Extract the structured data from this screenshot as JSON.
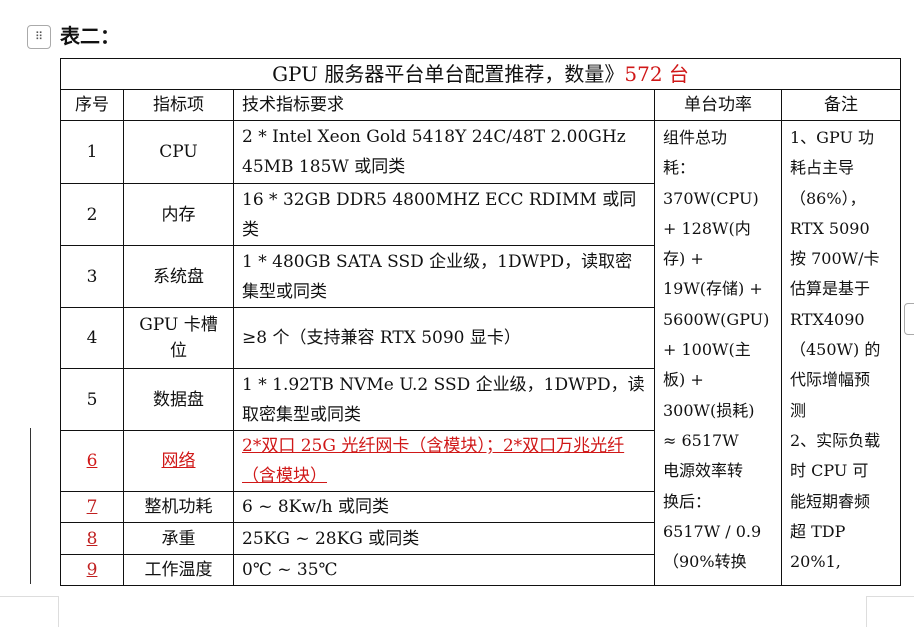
{
  "heading": "表二：",
  "table": {
    "title": "GPU 服务器平台单台配置推荐，数量》",
    "title_count": "572 台",
    "headers": [
      "序号",
      "指标项",
      "技术指标要求",
      "单台功率",
      "备注"
    ],
    "rows": [
      {
        "no": "1",
        "item": "CPU",
        "spec": "2 * Intel Xeon Gold 5418Y 24C/48T 2.00GHz 45MB 185W 或同类"
      },
      {
        "no": "2",
        "item": "内存",
        "spec": "16 * 32GB DDR5 4800MHZ ECC RDIMM 或同类"
      },
      {
        "no": "3",
        "item": "系统盘",
        "spec": "1 * 480GB SATA SSD  企业级，1DWPD，读取密集型或同类"
      },
      {
        "no": "4",
        "item": "GPU 卡槽位",
        "spec": "≥8 个（支持兼容 RTX 5090 显卡）"
      },
      {
        "no": "5",
        "item": "数据盘",
        "spec": "1 * 1.92TB NVMe U.2 SSD  企业级，1DWPD，读取密集型或同类"
      },
      {
        "no": "6",
        "item": "网络",
        "spec": "2*双口 25G 光纤网卡（含模块）；2*双口万兆光纤（含模块）"
      },
      {
        "no": "7",
        "item": "整机功耗",
        "spec": "6 ~ 8Kw/h 或同类"
      },
      {
        "no": "8",
        "item": "承重",
        "spec": "25KG ~ 28KG 或同类"
      },
      {
        "no": "9",
        "item": "工作温度",
        "spec": "0℃ ~ 35℃"
      }
    ],
    "power_lines": [
      "组件总功",
      "耗：",
      "370W(CPU)",
      "+ 128W(内",
      "存) +",
      "19W(存储) +",
      "5600W(GPU)",
      "+ 100W(主",
      "板) +",
      "300W(损耗)",
      "≈  6517W",
      "电源效率转",
      "换后：",
      "6517W / 0.9",
      "（90%转换"
    ],
    "notes_lines": [
      "1、GPU 功",
      "耗占主导",
      "（86%），",
      "RTX 5090",
      "按 700W/卡",
      "估算是基于",
      "RTX4090",
      "（450W) 的",
      "代际增幅预",
      "测",
      "2、实际负载",
      "时 CPU 可",
      "能短期睿频",
      "超 TDP",
      "20%1,"
    ]
  },
  "colors": {
    "revision_red": "#d01818"
  }
}
